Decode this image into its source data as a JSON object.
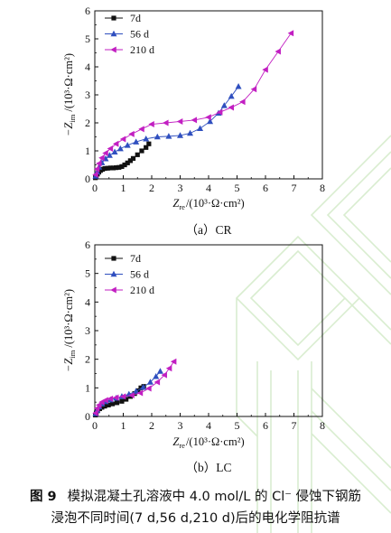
{
  "chart_data": [
    {
      "type": "line",
      "panel_label": "（a）CR",
      "xlabel": {
        "symbol": "Z",
        "subscript": "re",
        "unit": "/(10³·Ω·cm²)"
      },
      "ylabel": {
        "symbol": "−Z",
        "subscript": "im",
        "unit": "/(10³·Ω·cm²)"
      },
      "xlim": [
        0,
        8
      ],
      "ylim": [
        0,
        6
      ],
      "xticks": [
        0,
        1,
        2,
        3,
        4,
        5,
        6,
        7,
        8
      ],
      "yticks": [
        0,
        1,
        2,
        3,
        4,
        5,
        6
      ],
      "grid": false,
      "legend_position": "top-left",
      "series": [
        {
          "name": "7d",
          "marker": "square",
          "color": "#111111",
          "x": [
            0.02,
            0.05,
            0.09,
            0.14,
            0.2,
            0.27,
            0.35,
            0.45,
            0.55,
            0.65,
            0.75,
            0.85,
            0.95,
            1.05,
            1.15,
            1.25,
            1.35,
            1.5,
            1.65,
            1.8,
            1.9
          ],
          "y": [
            0.04,
            0.1,
            0.17,
            0.24,
            0.3,
            0.34,
            0.37,
            0.38,
            0.39,
            0.39,
            0.4,
            0.41,
            0.44,
            0.5,
            0.57,
            0.65,
            0.73,
            0.86,
            1.0,
            1.12,
            1.25
          ]
        },
        {
          "name": "56 d",
          "marker": "triangle-up",
          "color": "#2f4fbf",
          "x": [
            0.03,
            0.08,
            0.15,
            0.25,
            0.38,
            0.52,
            0.7,
            0.9,
            1.15,
            1.45,
            1.8,
            2.2,
            2.6,
            3.0,
            3.35,
            3.7,
            4.05,
            4.35,
            4.55,
            4.8,
            5.05
          ],
          "y": [
            0.1,
            0.25,
            0.42,
            0.58,
            0.72,
            0.84,
            0.96,
            1.08,
            1.2,
            1.32,
            1.43,
            1.5,
            1.52,
            1.55,
            1.63,
            1.8,
            2.05,
            2.35,
            2.62,
            2.95,
            3.3
          ]
        },
        {
          "name": "210 d",
          "marker": "triangle-left",
          "color": "#c21fc2",
          "x": [
            0.03,
            0.08,
            0.15,
            0.25,
            0.38,
            0.55,
            0.75,
            1.0,
            1.3,
            1.65,
            2.0,
            2.5,
            3.0,
            3.5,
            4.0,
            4.4,
            4.8,
            5.2,
            5.6,
            6.0,
            6.45,
            6.9
          ],
          "y": [
            0.15,
            0.35,
            0.55,
            0.75,
            0.92,
            1.08,
            1.25,
            1.42,
            1.6,
            1.78,
            1.95,
            2.0,
            2.05,
            2.1,
            2.2,
            2.38,
            2.55,
            2.75,
            3.2,
            3.9,
            4.55,
            5.2
          ]
        }
      ]
    },
    {
      "type": "line",
      "panel_label": "（b）LC",
      "xlabel": {
        "symbol": "Z",
        "subscript": "re",
        "unit": "/(10³·Ω·cm²)"
      },
      "ylabel": {
        "symbol": "−Z",
        "subscript": "im",
        "unit": "/(10³·Ω·cm²)"
      },
      "xlim": [
        0,
        8
      ],
      "ylim": [
        0,
        6
      ],
      "xticks": [
        0,
        1,
        2,
        3,
        4,
        5,
        6,
        7,
        8
      ],
      "yticks": [
        0,
        1,
        2,
        3,
        4,
        5,
        6
      ],
      "grid": false,
      "legend_position": "top-left",
      "series": [
        {
          "name": "7d",
          "marker": "square",
          "color": "#111111",
          "x": [
            0.02,
            0.05,
            0.1,
            0.17,
            0.25,
            0.35,
            0.48,
            0.62,
            0.78,
            0.95,
            1.1,
            1.25,
            1.4,
            1.52,
            1.62,
            1.72
          ],
          "y": [
            0.05,
            0.12,
            0.2,
            0.27,
            0.32,
            0.36,
            0.4,
            0.44,
            0.48,
            0.53,
            0.6,
            0.7,
            0.8,
            0.9,
            1.0,
            1.05
          ]
        },
        {
          "name": "56 d",
          "marker": "triangle-up",
          "color": "#2f4fbf",
          "x": [
            0.03,
            0.08,
            0.15,
            0.25,
            0.38,
            0.55,
            0.75,
            0.95,
            1.2,
            1.45,
            1.7,
            1.95,
            2.15,
            2.3
          ],
          "y": [
            0.1,
            0.22,
            0.34,
            0.44,
            0.52,
            0.58,
            0.64,
            0.7,
            0.78,
            0.88,
            1.02,
            1.2,
            1.4,
            1.58
          ]
        },
        {
          "name": "210 d",
          "marker": "triangle-left",
          "color": "#c21fc2",
          "x": [
            0.03,
            0.08,
            0.15,
            0.25,
            0.38,
            0.55,
            0.75,
            1.0,
            1.3,
            1.6,
            1.9,
            2.2,
            2.45,
            2.62,
            2.78
          ],
          "y": [
            0.12,
            0.28,
            0.4,
            0.5,
            0.57,
            0.62,
            0.66,
            0.7,
            0.74,
            0.82,
            0.98,
            1.2,
            1.45,
            1.68,
            1.92
          ]
        }
      ]
    }
  ],
  "caption": {
    "figure_number": "图 9",
    "line1": "模拟混凝土孔溶液中 4.0 mol/L 的 Cl⁻ 侵蚀下钢筋",
    "line2": "浸泡不同时间(7 d,56 d,210 d)后的电化学阻抗谱"
  }
}
